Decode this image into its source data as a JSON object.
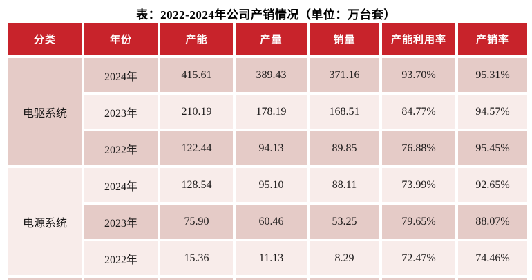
{
  "title": "表：2022-2024年公司产销情况（单位：万台套）",
  "colors": {
    "header_red": "#C8232B",
    "row_dark": "#E5CBC7",
    "row_light": "#F8ECEA",
    "header_text": "#FFFFFF",
    "body_text": "#1C1A1A",
    "page_bg": "#FFFFFF"
  },
  "table": {
    "headers": [
      "分类",
      "年份",
      "产能",
      "产量",
      "销量",
      "产能利用率",
      "产销率"
    ],
    "groups": [
      {
        "label": "电驱系统",
        "rows": [
          {
            "year": "2024年",
            "capacity": "415.61",
            "output": "389.43",
            "sales": "371.16",
            "utilization": "93.70%",
            "sales_ratio": "95.31%"
          },
          {
            "year": "2023年",
            "capacity": "210.19",
            "output": "178.19",
            "sales": "168.51",
            "utilization": "84.77%",
            "sales_ratio": "94.57%"
          },
          {
            "year": "2022年",
            "capacity": "122.44",
            "output": "94.13",
            "sales": "89.85",
            "utilization": "76.88%",
            "sales_ratio": "95.45%"
          }
        ]
      },
      {
        "label": "电源系统",
        "rows": [
          {
            "year": "2024年",
            "capacity": "128.54",
            "output": "95.10",
            "sales": "88.11",
            "utilization": "73.99%",
            "sales_ratio": "92.65%"
          },
          {
            "year": "2023年",
            "capacity": "75.90",
            "output": "60.46",
            "sales": "53.25",
            "utilization": "79.65%",
            "sales_ratio": "88.07%"
          },
          {
            "year": "2022年",
            "capacity": "15.36",
            "output": "11.13",
            "sales": "8.29",
            "utilization": "72.47%",
            "sales_ratio": "74.46%"
          }
        ]
      }
    ]
  },
  "chart_data": {
    "type": "table",
    "title": "表：2022-2024年公司产销情况（单位：万台套）",
    "unit": "万台套",
    "columns": [
      "分类",
      "年份",
      "产能",
      "产量",
      "销量",
      "产能利用率",
      "产销率"
    ],
    "rows": [
      [
        "电驱系统",
        "2024年",
        415.61,
        389.43,
        371.16,
        "93.70%",
        "95.31%"
      ],
      [
        "电驱系统",
        "2023年",
        210.19,
        178.19,
        168.51,
        "84.77%",
        "94.57%"
      ],
      [
        "电驱系统",
        "2022年",
        122.44,
        94.13,
        89.85,
        "76.88%",
        "95.45%"
      ],
      [
        "电源系统",
        "2024年",
        128.54,
        95.1,
        88.11,
        "73.99%",
        "92.65%"
      ],
      [
        "电源系统",
        "2023年",
        75.9,
        60.46,
        53.25,
        "79.65%",
        "88.07%"
      ],
      [
        "电源系统",
        "2022年",
        15.36,
        11.13,
        8.29,
        "72.47%",
        "74.46%"
      ]
    ],
    "layout": {
      "header_style": "red-background-white-text",
      "row_striping": "alternating dark/light pink starting dark",
      "category_column_merged": true,
      "cell_borders": "white gaps between cells"
    }
  }
}
